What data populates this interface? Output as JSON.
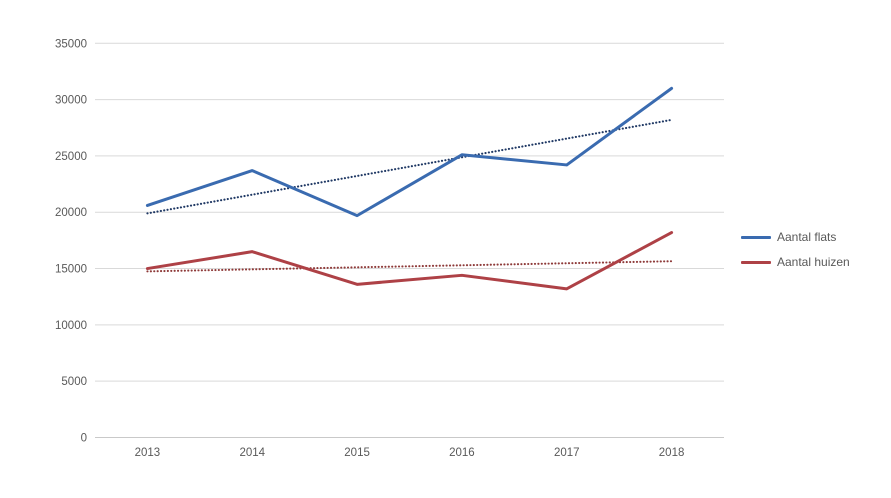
{
  "chart_data": {
    "type": "line",
    "title": "",
    "xlabel": "",
    "ylabel": "",
    "categories": [
      "2013",
      "2014",
      "2015",
      "2016",
      "2017",
      "2018"
    ],
    "series": [
      {
        "name": "Aantal flats",
        "values": [
          20600,
          23700,
          19700,
          25100,
          24200,
          31000
        ],
        "color": "#3A6BB0",
        "trendline": {
          "start": 19900,
          "end": 28200,
          "color": "#1F3864",
          "style": "dotted"
        }
      },
      {
        "name": "Aantal huizen",
        "values": [
          15000,
          16500,
          13600,
          14400,
          13200,
          18200
        ],
        "color": "#AE4146",
        "trendline": {
          "start": 14750,
          "end": 15650,
          "color": "#8E3A39",
          "style": "dotted"
        }
      }
    ],
    "ylim": [
      0,
      35000
    ],
    "yticks": [
      0,
      5000,
      10000,
      15000,
      20000,
      25000,
      30000,
      35000
    ],
    "grid": true,
    "gridline_color": "#D9D9D9",
    "axis_text_color": "#595959",
    "legend_position": "right"
  }
}
